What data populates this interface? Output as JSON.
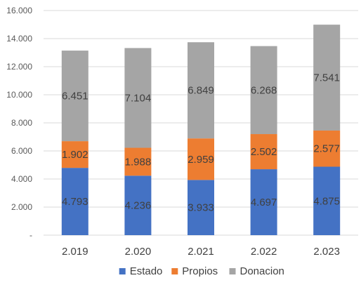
{
  "chart_data": {
    "type": "bar",
    "stacked": true,
    "categories": [
      "2.019",
      "2.020",
      "2.021",
      "2.022",
      "2.023"
    ],
    "series": [
      {
        "name": "Estado",
        "color": "#4472C4",
        "values": [
          4793,
          4236,
          3933,
          4697,
          4875
        ],
        "labels": [
          "4.793",
          "4.236",
          "3.933",
          "4.697",
          "4.875"
        ]
      },
      {
        "name": "Propios",
        "color": "#ED7D31",
        "values": [
          1902,
          1988,
          2959,
          2502,
          2577
        ],
        "labels": [
          "1.902",
          "1.988",
          "2.959",
          "2.502",
          "2.577"
        ]
      },
      {
        "name": "Donacion",
        "color": "#A5A5A5",
        "values": [
          6451,
          7104,
          6849,
          6268,
          7541
        ],
        "labels": [
          "6.451",
          "7.104",
          "6.849",
          "6.268",
          "7.541"
        ]
      }
    ],
    "ylim": [
      0,
      16000
    ],
    "yticks": [
      0,
      2000,
      4000,
      6000,
      8000,
      10000,
      12000,
      14000,
      16000
    ],
    "ytick_labels": [
      "-",
      "2.000",
      "4.000",
      "6.000",
      "8.000",
      "10.000",
      "12.000",
      "14.000",
      "16.000"
    ],
    "grid": true,
    "grid_color": "#D9D9D9",
    "legend_position": "bottom",
    "title": "",
    "xlabel": "",
    "ylabel": ""
  }
}
